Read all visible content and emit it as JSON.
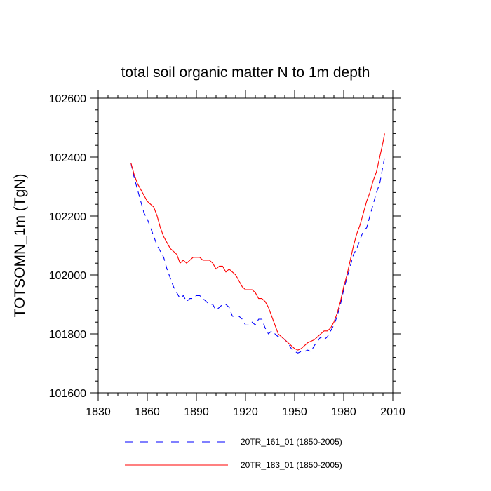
{
  "chart_data": {
    "type": "line",
    "title": "total soil organic matter N to 1m depth",
    "xlabel": "",
    "ylabel": "TOTSOMN_1m  (TgN)",
    "xlim": [
      1830,
      2010
    ],
    "ylim": [
      101600,
      102600
    ],
    "xticks": [
      1830,
      1860,
      1890,
      1920,
      1950,
      1980,
      2010
    ],
    "yticks": [
      101600,
      101800,
      102000,
      102200,
      102400,
      102600
    ],
    "xtick_labels": [
      "1830",
      "1860",
      "1890",
      "1920",
      "1950",
      "1980",
      "2010"
    ],
    "ytick_labels": [
      "101600",
      "101800",
      "102000",
      "102200",
      "102400",
      "102600"
    ],
    "legend_position": "bottom",
    "series": [
      {
        "name": "20TR_161_01 (1850-2005)",
        "color": "#0000ff",
        "style": "dashed",
        "x": [
          1850,
          1852,
          1854,
          1856,
          1858,
          1860,
          1862,
          1864,
          1866,
          1868,
          1870,
          1872,
          1874,
          1876,
          1878,
          1880,
          1882,
          1884,
          1886,
          1888,
          1890,
          1892,
          1894,
          1896,
          1898,
          1900,
          1902,
          1904,
          1906,
          1908,
          1910,
          1912,
          1914,
          1916,
          1918,
          1920,
          1922,
          1924,
          1926,
          1928,
          1930,
          1932,
          1934,
          1936,
          1938,
          1940,
          1942,
          1944,
          1946,
          1948,
          1950,
          1952,
          1954,
          1956,
          1958,
          1960,
          1962,
          1964,
          1966,
          1968,
          1970,
          1972,
          1974,
          1976,
          1978,
          1980,
          1982,
          1984,
          1986,
          1988,
          1990,
          1992,
          1994,
          1996,
          1998,
          2000,
          2002,
          2004,
          2005
        ],
        "y": [
          102380,
          102330,
          102290,
          102250,
          102210,
          102190,
          102160,
          102130,
          102100,
          102080,
          102060,
          102020,
          101990,
          101960,
          101940,
          101920,
          101930,
          101910,
          101920,
          101920,
          101930,
          101930,
          101920,
          101910,
          101900,
          101900,
          101880,
          101890,
          101900,
          101900,
          101890,
          101860,
          101860,
          101860,
          101850,
          101830,
          101830,
          101840,
          101830,
          101850,
          101850,
          101820,
          101800,
          101810,
          101800,
          101790,
          101790,
          101780,
          101770,
          101750,
          101740,
          101735,
          101740,
          101740,
          101745,
          101740,
          101760,
          101775,
          101790,
          101780,
          101790,
          101810,
          101830,
          101860,
          101900,
          101950,
          101990,
          102030,
          102070,
          102090,
          102120,
          102150,
          102160,
          102200,
          102240,
          102280,
          102310,
          102370,
          102400
        ]
      },
      {
        "name": "20TR_183_01 (1850-2005)",
        "color": "#ff0000",
        "style": "solid",
        "x": [
          1850,
          1852,
          1854,
          1856,
          1858,
          1860,
          1862,
          1864,
          1866,
          1868,
          1870,
          1872,
          1874,
          1876,
          1878,
          1880,
          1882,
          1884,
          1886,
          1888,
          1890,
          1892,
          1894,
          1896,
          1898,
          1900,
          1902,
          1904,
          1906,
          1908,
          1910,
          1912,
          1914,
          1916,
          1918,
          1920,
          1922,
          1924,
          1926,
          1928,
          1930,
          1932,
          1934,
          1936,
          1938,
          1940,
          1942,
          1944,
          1946,
          1948,
          1950,
          1952,
          1954,
          1956,
          1958,
          1960,
          1962,
          1964,
          1966,
          1968,
          1970,
          1972,
          1974,
          1976,
          1978,
          1980,
          1982,
          1984,
          1986,
          1988,
          1990,
          1992,
          1994,
          1996,
          1998,
          2000,
          2002,
          2004,
          2005
        ],
        "y": [
          102380,
          102340,
          102310,
          102290,
          102270,
          102250,
          102240,
          102230,
          102200,
          102160,
          102130,
          102110,
          102090,
          102080,
          102070,
          102040,
          102050,
          102040,
          102050,
          102060,
          102060,
          102060,
          102050,
          102050,
          102050,
          102040,
          102020,
          102030,
          102030,
          102010,
          102020,
          102010,
          102000,
          101980,
          101960,
          101950,
          101950,
          101950,
          101940,
          101920,
          101920,
          101910,
          101890,
          101860,
          101830,
          101800,
          101790,
          101780,
          101770,
          101760,
          101750,
          101745,
          101750,
          101760,
          101770,
          101775,
          101780,
          101790,
          101800,
          101810,
          101810,
          101820,
          101840,
          101870,
          101910,
          101960,
          102000,
          102050,
          102100,
          102140,
          102170,
          102210,
          102250,
          102280,
          102320,
          102350,
          102400,
          102450,
          102480
        ]
      }
    ]
  }
}
